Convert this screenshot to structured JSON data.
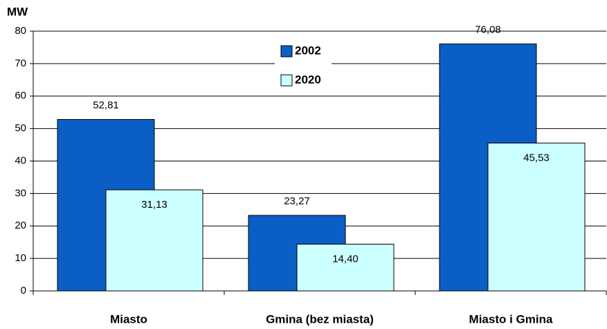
{
  "chart_data": {
    "type": "bar",
    "y_label": "MW",
    "categories": [
      "Miasto",
      "Gmina (bez miasta)",
      "Miasto i Gmina"
    ],
    "series": [
      {
        "name": "2002",
        "color": "#0b5ec6",
        "values": [
          52.81,
          23.27,
          76.08
        ],
        "value_labels": [
          "52,81",
          "23,27",
          "76,08"
        ]
      },
      {
        "name": "2020",
        "color": "#ccffff",
        "values": [
          31.13,
          14.4,
          45.53
        ],
        "value_labels": [
          "31,13",
          "14,40",
          "45,53"
        ]
      }
    ],
    "ylim": [
      0,
      80
    ],
    "yticks": [
      0,
      10,
      20,
      30,
      40,
      50,
      60,
      70,
      80
    ],
    "grid": true
  }
}
